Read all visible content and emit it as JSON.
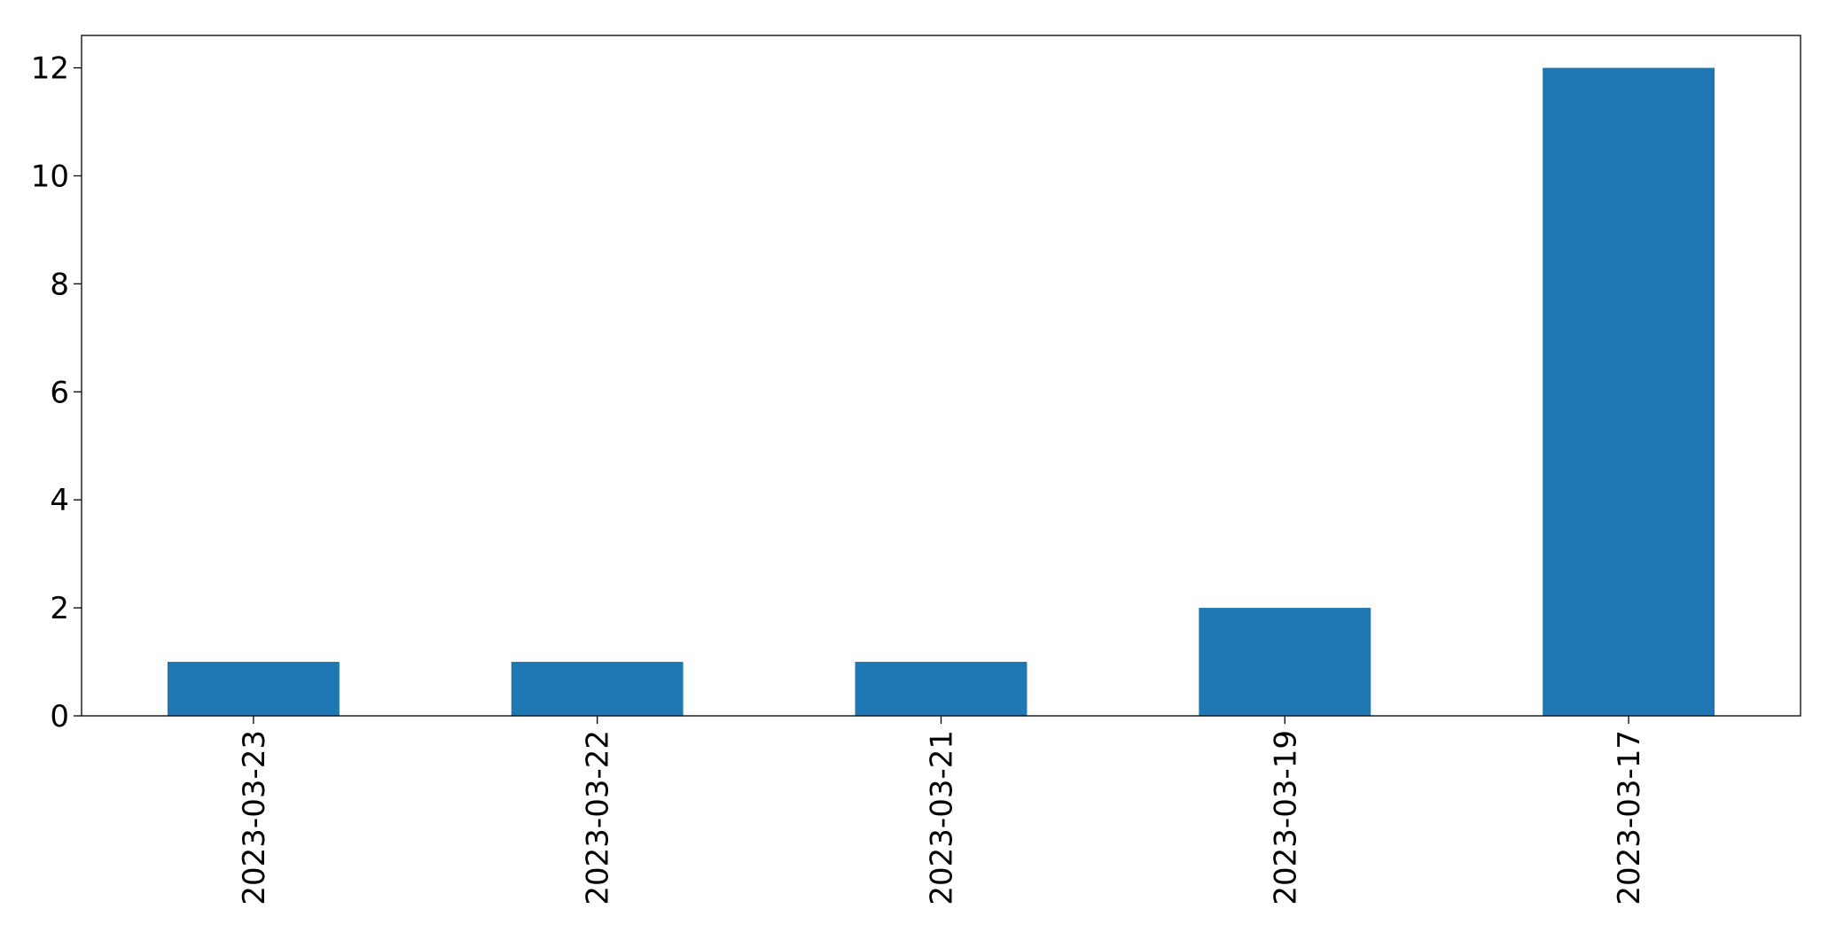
{
  "chart_data": {
    "type": "bar",
    "categories": [
      "2023-03-23",
      "2023-03-22",
      "2023-03-21",
      "2023-03-19",
      "2023-03-17"
    ],
    "values": [
      1,
      1,
      1,
      2,
      12
    ],
    "color": "#1f77b4",
    "ylim": [
      0,
      12.6
    ],
    "yticks": [
      0,
      2,
      4,
      6,
      8,
      10,
      12
    ],
    "grid": false
  }
}
